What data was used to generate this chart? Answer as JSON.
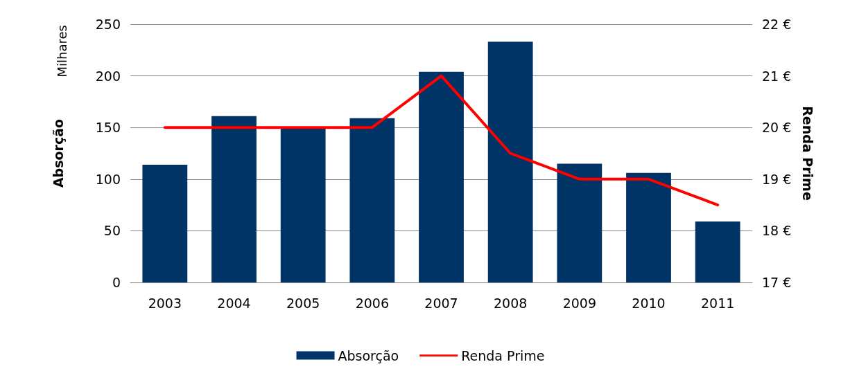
{
  "chart_data": {
    "type": "bar",
    "categories": [
      "2003",
      "2004",
      "2005",
      "2006",
      "2007",
      "2008",
      "2009",
      "2010",
      "2011"
    ],
    "series": [
      {
        "name": "Absorção",
        "color": "#003366",
        "values": [
          114,
          161,
          150,
          159,
          204,
          233,
          115,
          106,
          59
        ]
      },
      {
        "name": "Renda Prime",
        "type": "line",
        "axis": "y2",
        "color": "#ff0000",
        "values": [
          20,
          20,
          20,
          20,
          21,
          19.5,
          19,
          19,
          18.5
        ]
      }
    ],
    "ylabel": "Absorção",
    "y2label": "Renda Prime",
    "annotations": [
      "Milhares"
    ],
    "ylim": [
      0,
      250
    ],
    "yticks": [
      0,
      50,
      100,
      150,
      200,
      250
    ],
    "y2lim": [
      17,
      22
    ],
    "y2ticks": [
      {
        "value": 17,
        "label": "17 €"
      },
      {
        "value": 18,
        "label": "18 €"
      },
      {
        "value": 19,
        "label": "19 €"
      },
      {
        "value": 20,
        "label": "20 €"
      },
      {
        "value": 21,
        "label": "21 €"
      },
      {
        "value": 22,
        "label": "22 €"
      }
    ],
    "grid": "y",
    "legend": "bottom",
    "marker": "none",
    "line_style": "solid"
  }
}
